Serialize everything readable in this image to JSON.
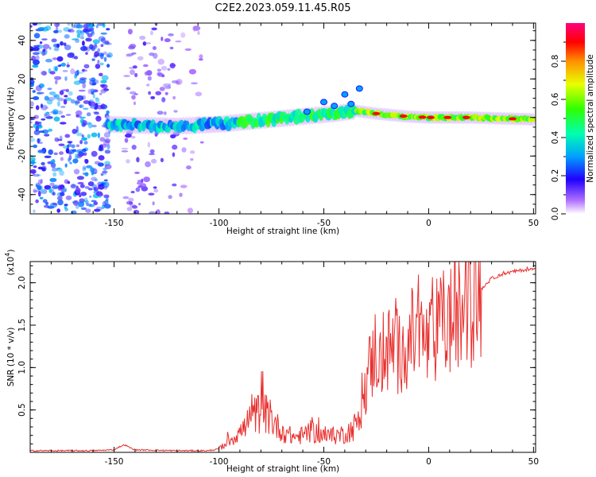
{
  "title": "C2E2.2023.059.11.45.R05",
  "colors": {
    "snr_line": "#e8302e",
    "axis": "#000000"
  },
  "chart_data": [
    {
      "type": "heatmap",
      "xlabel": "Height of straight line (km)",
      "ylabel": "Frequency (Hz)",
      "xlim": [
        -190,
        51
      ],
      "ylim": [
        -50,
        49
      ],
      "x_ticks": [
        -150,
        -100,
        -50,
        0,
        50
      ],
      "y_ticks": [
        -40,
        -20,
        0,
        20,
        40
      ],
      "x_tick_labels": [
        "-150",
        "-100",
        "-50",
        "0",
        "50"
      ],
      "y_tick_labels": [
        "-40",
        "-20",
        "0",
        "20",
        "40"
      ],
      "colormap": "rainbow",
      "colorbar": {
        "label": "Normalized spectral amplitude",
        "range": [
          0,
          1
        ],
        "ticks": [
          0.0,
          0.2,
          0.4,
          0.6,
          0.8
        ],
        "tick_labels": [
          "0.0",
          "0.2",
          "0.4",
          "0.6",
          "0.8"
        ]
      },
      "ridge": {
        "description_points_x": [
          -153,
          -140,
          -120,
          -100,
          -80,
          -60,
          -45,
          -35,
          -25,
          -10,
          0,
          20,
          50
        ],
        "description_points_y": [
          -3.5,
          -4,
          -4.5,
          -3.5,
          -1.5,
          0.5,
          2,
          3.5,
          2,
          0.5,
          0,
          0,
          -1
        ]
      },
      "noise_bands": [
        {
          "x_range": [
            -190,
            -152
          ],
          "y_range": [
            -50,
            49
          ],
          "level": 0.22
        },
        {
          "x_range": [
            -145,
            -120
          ],
          "y_range": [
            -50,
            49
          ],
          "level": 0.08
        },
        {
          "x_range": [
            -120,
            -105
          ],
          "y_range": [
            -50,
            49
          ],
          "level": 0.03
        }
      ]
    },
    {
      "type": "line",
      "xlabel": "Height of straight line (km)",
      "ylabel": "SNR (10 * v/v)",
      "y_scale_label": "(x10",
      "y_scale_exponent": "4",
      "xlim": [
        -190,
        51
      ],
      "ylim": [
        0,
        2.25
      ],
      "x_ticks": [
        -150,
        -100,
        -50,
        0,
        50
      ],
      "y_ticks": [
        0.5,
        1.0,
        1.5,
        2.0
      ],
      "x_tick_labels": [
        "-150",
        "-100",
        "-50",
        "0",
        "50"
      ],
      "y_tick_labels": [
        "0.5",
        "1.0",
        "1.5",
        "2.0"
      ],
      "series": [
        {
          "color": "#e8302e",
          "x": [
            -190,
            -160,
            -150,
            -148,
            -145,
            -142,
            -140,
            -120,
            -105,
            -100,
            -96,
            -92,
            -88,
            -84,
            -80,
            -76,
            -72,
            -68,
            -64,
            -60,
            -56,
            -52,
            -48,
            -44,
            -40,
            -36,
            -33,
            -31,
            -29,
            -27,
            -25,
            -23,
            -21,
            -19,
            -17,
            -14,
            -11,
            -8,
            -5,
            -2,
            0,
            3,
            6,
            10,
            14,
            18,
            22,
            26,
            30,
            35,
            40,
            45,
            51
          ],
          "y": [
            0.02,
            0.02,
            0.03,
            0.06,
            0.09,
            0.05,
            0.03,
            0.02,
            0.02,
            0.04,
            0.12,
            0.2,
            0.28,
            0.4,
            0.5,
            0.42,
            0.3,
            0.22,
            0.18,
            0.2,
            0.25,
            0.22,
            0.18,
            0.2,
            0.22,
            0.28,
            0.4,
            0.62,
            0.95,
            1.05,
            1.25,
            1.05,
            1.15,
            1.2,
            1.25,
            1.15,
            1.3,
            1.35,
            1.4,
            1.3,
            1.25,
            1.4,
            1.5,
            1.55,
            1.6,
            1.72,
            1.85,
            1.95,
            2.05,
            2.1,
            2.13,
            2.15,
            2.16
          ]
        }
      ]
    }
  ]
}
